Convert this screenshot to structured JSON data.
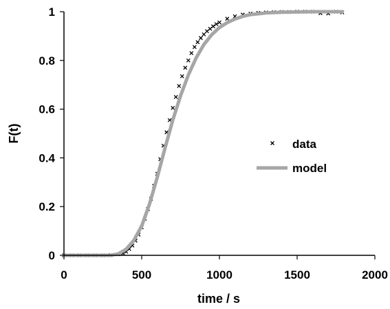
{
  "chart_data": {
    "type": "scatter",
    "title": "",
    "xlabel": "time / s",
    "ylabel": "F(t)",
    "xlim": [
      0,
      2000
    ],
    "ylim": [
      0,
      1
    ],
    "x_ticks": [
      "0",
      "500",
      "1000",
      "1500",
      "2000"
    ],
    "y_ticks": [
      "0",
      "0.2",
      "0.4",
      "0.6",
      "0.8",
      "1"
    ],
    "grid": false,
    "legend_position": "center-right",
    "colors": {
      "data": "#000000",
      "model": "#a6a6a6",
      "axis": "#000000"
    },
    "series": [
      {
        "name": "data",
        "kind": "markers",
        "marker": "x",
        "x": [
          0,
          50,
          100,
          150,
          200,
          250,
          300,
          350,
          380,
          400,
          420,
          440,
          460,
          480,
          500,
          520,
          540,
          560,
          580,
          600,
          620,
          640,
          660,
          680,
          700,
          720,
          740,
          760,
          780,
          800,
          820,
          840,
          860,
          880,
          900,
          920,
          940,
          960,
          980,
          1000,
          1050,
          1100,
          1150,
          1200,
          1250,
          1300,
          1350,
          1400,
          1450,
          1500,
          1550,
          1600,
          1650,
          1700,
          1750,
          1790
        ],
        "y": [
          0.0,
          0.0,
          0.0,
          0.0,
          0.0,
          0.0,
          0.001,
          0.004,
          0.008,
          0.015,
          0.026,
          0.04,
          0.06,
          0.085,
          0.115,
          0.15,
          0.19,
          0.232,
          0.285,
          0.335,
          0.395,
          0.45,
          0.505,
          0.555,
          0.605,
          0.65,
          0.695,
          0.735,
          0.77,
          0.8,
          0.83,
          0.855,
          0.875,
          0.892,
          0.907,
          0.92,
          0.93,
          0.94,
          0.949,
          0.956,
          0.971,
          0.981,
          0.988,
          0.992,
          0.995,
          0.997,
          0.998,
          0.999,
          0.999,
          1.0,
          1.0,
          1.0,
          0.994,
          0.993,
          1.0,
          0.997
        ]
      },
      {
        "name": "model",
        "kind": "line",
        "x": [
          0,
          300,
          350,
          400,
          450,
          500,
          550,
          600,
          650,
          700,
          750,
          800,
          850,
          900,
          950,
          1000,
          1050,
          1100,
          1150,
          1200,
          1300,
          1400,
          1500,
          1600,
          1700,
          1790
        ],
        "y": [
          0.0,
          0.0,
          0.006,
          0.025,
          0.062,
          0.12,
          0.21,
          0.32,
          0.44,
          0.555,
          0.655,
          0.74,
          0.81,
          0.865,
          0.905,
          0.935,
          0.955,
          0.97,
          0.981,
          0.988,
          0.995,
          0.998,
          0.999,
          1.0,
          1.0,
          1.0
        ]
      }
    ]
  }
}
